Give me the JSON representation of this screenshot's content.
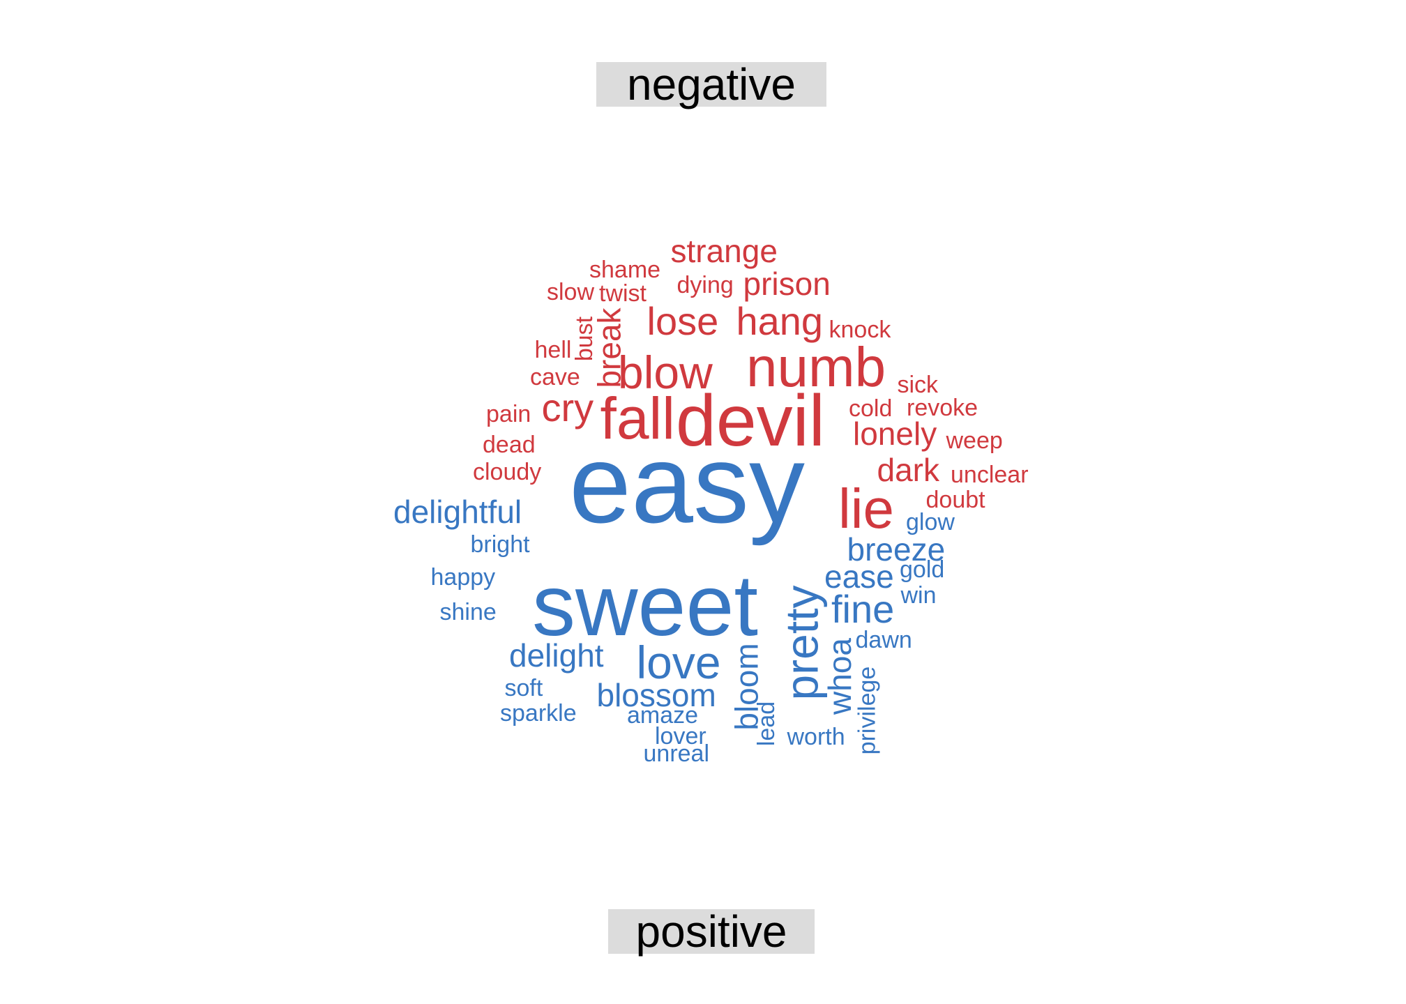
{
  "labels": {
    "negative": "negative",
    "positive": "positive"
  },
  "colors": {
    "negative": "#d0393e",
    "positive": "#3877c2"
  },
  "words": [
    {
      "text": "strange",
      "group": "negative"
    },
    {
      "text": "shame",
      "group": "negative"
    },
    {
      "text": "dying",
      "group": "negative"
    },
    {
      "text": "prison",
      "group": "negative"
    },
    {
      "text": "slow",
      "group": "negative"
    },
    {
      "text": "twist",
      "group": "negative"
    },
    {
      "text": "lose",
      "group": "negative"
    },
    {
      "text": "hang",
      "group": "negative"
    },
    {
      "text": "knock",
      "group": "negative"
    },
    {
      "text": "bust",
      "group": "negative"
    },
    {
      "text": "break",
      "group": "negative"
    },
    {
      "text": "hell",
      "group": "negative"
    },
    {
      "text": "blow",
      "group": "negative"
    },
    {
      "text": "numb",
      "group": "negative"
    },
    {
      "text": "cave",
      "group": "negative"
    },
    {
      "text": "sick",
      "group": "negative"
    },
    {
      "text": "cry",
      "group": "negative"
    },
    {
      "text": "fall",
      "group": "negative"
    },
    {
      "text": "devil",
      "group": "negative"
    },
    {
      "text": "cold",
      "group": "negative"
    },
    {
      "text": "revoke",
      "group": "negative"
    },
    {
      "text": "pain",
      "group": "negative"
    },
    {
      "text": "lonely",
      "group": "negative"
    },
    {
      "text": "dead",
      "group": "negative"
    },
    {
      "text": "weep",
      "group": "negative"
    },
    {
      "text": "cloudy",
      "group": "negative"
    },
    {
      "text": "dark",
      "group": "negative"
    },
    {
      "text": "unclear",
      "group": "negative"
    },
    {
      "text": "lie",
      "group": "negative"
    },
    {
      "text": "doubt",
      "group": "negative"
    },
    {
      "text": "easy",
      "group": "positive"
    },
    {
      "text": "delightful",
      "group": "positive"
    },
    {
      "text": "glow",
      "group": "positive"
    },
    {
      "text": "bright",
      "group": "positive"
    },
    {
      "text": "breeze",
      "group": "positive"
    },
    {
      "text": "happy",
      "group": "positive"
    },
    {
      "text": "ease",
      "group": "positive"
    },
    {
      "text": "gold",
      "group": "positive"
    },
    {
      "text": "sweet",
      "group": "positive"
    },
    {
      "text": "pretty",
      "group": "positive"
    },
    {
      "text": "win",
      "group": "positive"
    },
    {
      "text": "shine",
      "group": "positive"
    },
    {
      "text": "fine",
      "group": "positive"
    },
    {
      "text": "delight",
      "group": "positive"
    },
    {
      "text": "whoa",
      "group": "positive"
    },
    {
      "text": "dawn",
      "group": "positive"
    },
    {
      "text": "love",
      "group": "positive"
    },
    {
      "text": "bloom",
      "group": "positive"
    },
    {
      "text": "soft",
      "group": "positive"
    },
    {
      "text": "blossom",
      "group": "positive"
    },
    {
      "text": "privilege",
      "group": "positive"
    },
    {
      "text": "sparkle",
      "group": "positive"
    },
    {
      "text": "amaze",
      "group": "positive"
    },
    {
      "text": "lead",
      "group": "positive"
    },
    {
      "text": "worth",
      "group": "positive"
    },
    {
      "text": "lover",
      "group": "positive"
    },
    {
      "text": "unreal",
      "group": "positive"
    }
  ]
}
